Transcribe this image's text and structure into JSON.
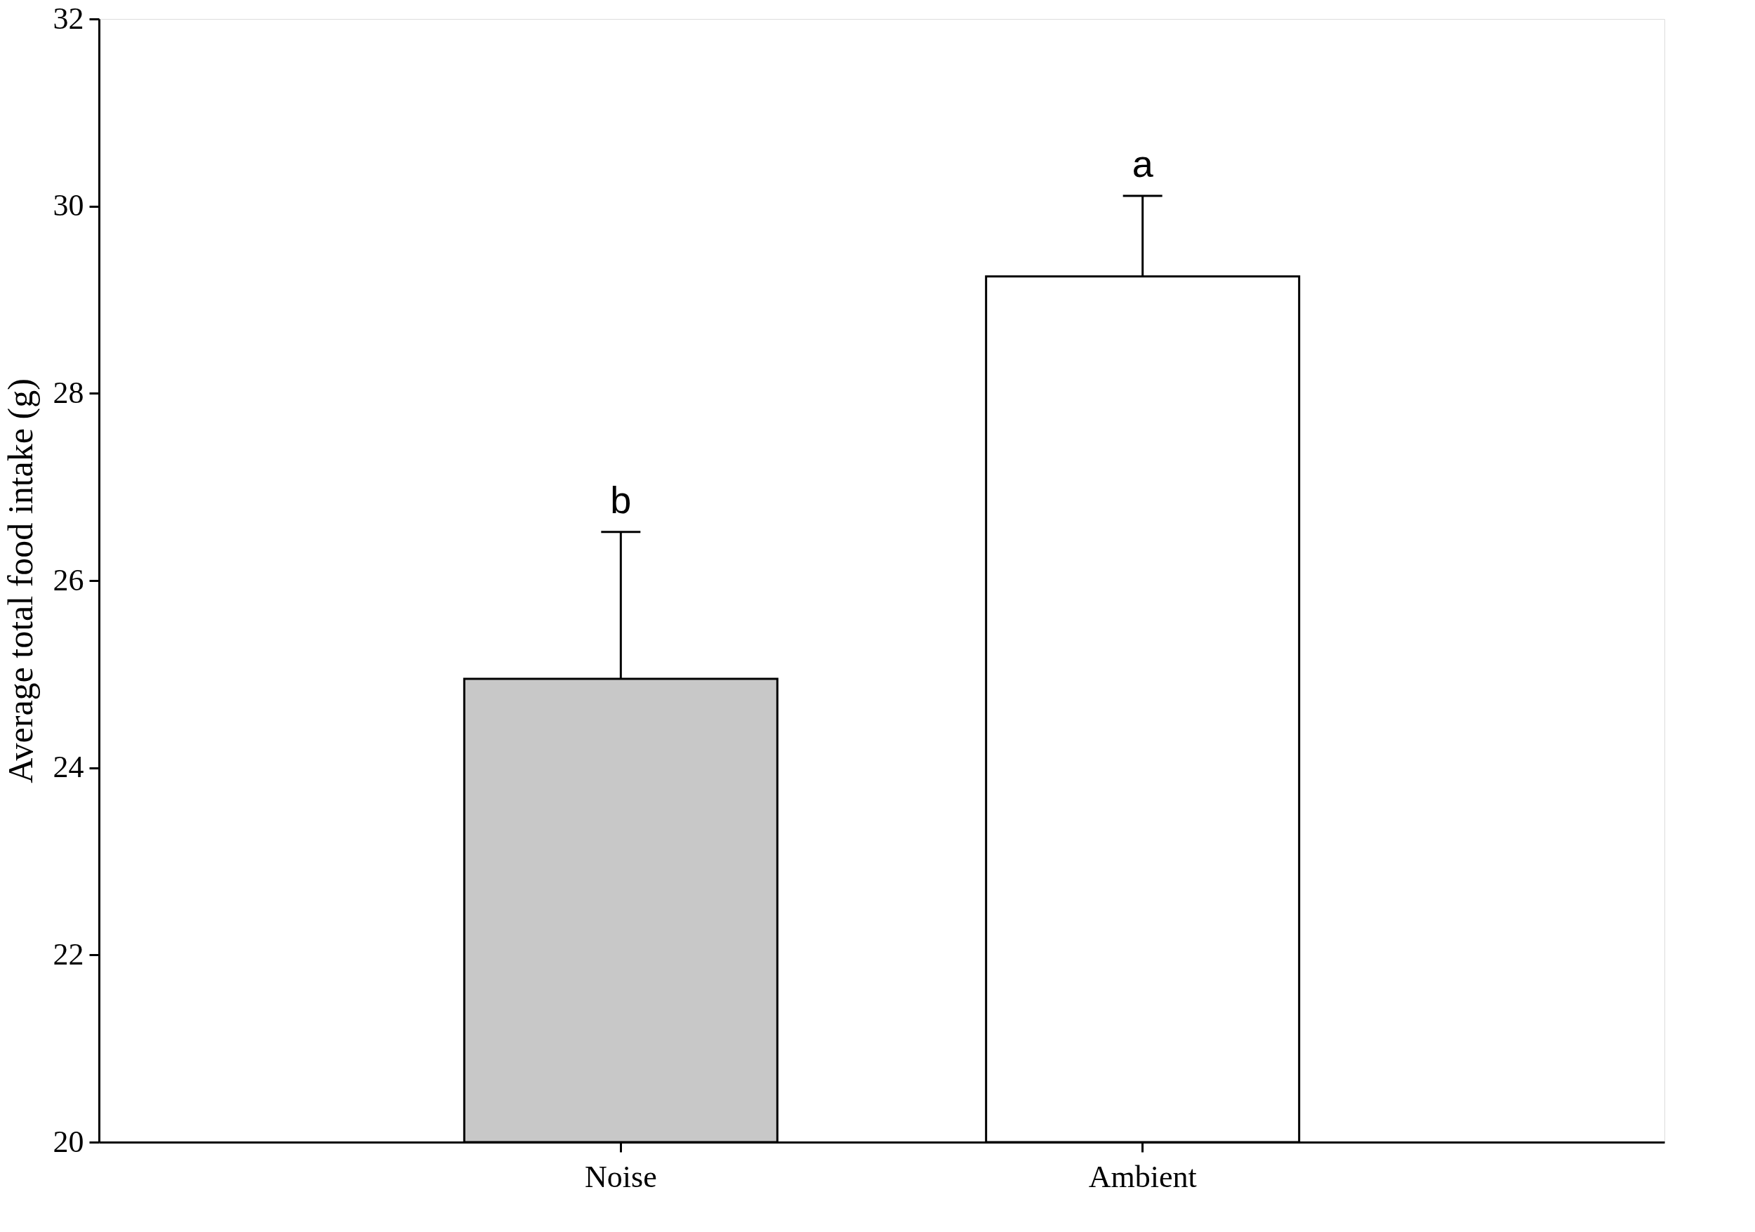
{
  "chart_data": {
    "type": "bar",
    "ylabel": "Average total food intake (g)",
    "categories": [
      "Noise",
      "Ambient"
    ],
    "values": [
      24.95,
      29.25
    ],
    "colors": [
      "#c8c8c8",
      "#ffffff"
    ],
    "errors": [
      [
        24.95,
        26.52
      ],
      [
        29.25,
        30.11
      ]
    ],
    "ylim": [
      20,
      32
    ],
    "yticks": [
      20,
      22,
      24,
      26,
      28,
      30,
      32
    ],
    "grid": false,
    "annotations": [
      {
        "text": "b",
        "x": "Noise",
        "y": 26.52
      },
      {
        "text": "a",
        "x": "Ambient",
        "y": 30.11
      }
    ]
  }
}
